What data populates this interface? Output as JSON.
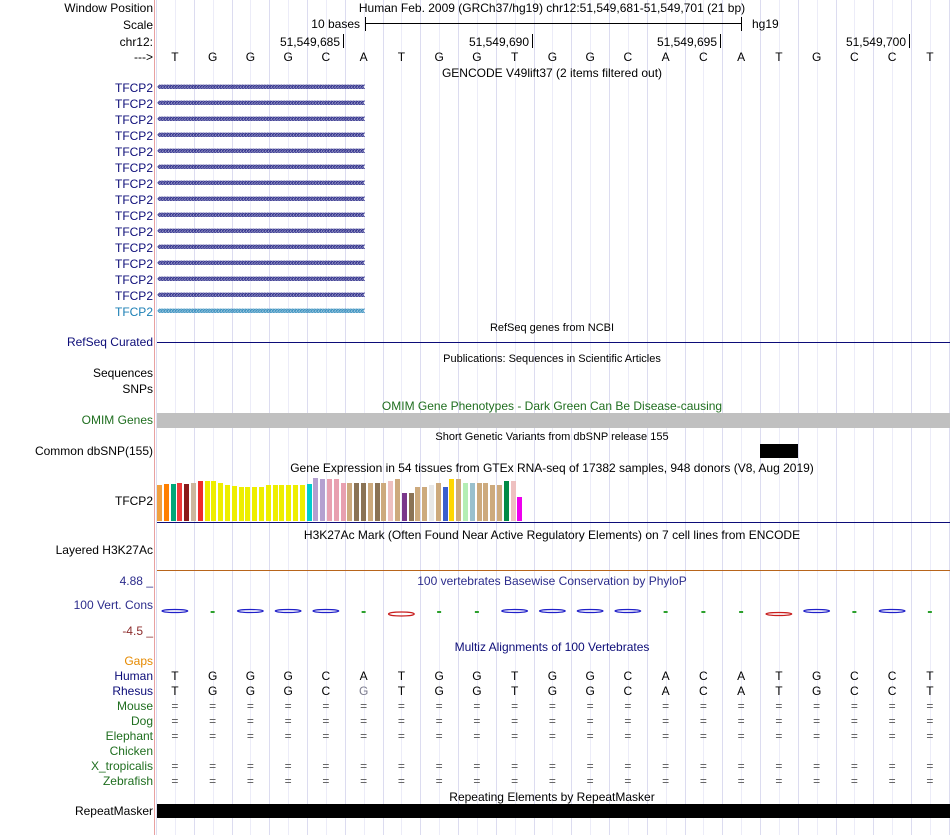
{
  "header": {
    "window_position_label": "Window Position",
    "assembly_text": "Human Feb. 2009 (GRCh37/hg19)   chr12:51,549,681-51,549,701 (21 bp)",
    "scale_label": "Scale",
    "scale_text": "10 bases",
    "scale_db": "hg19",
    "chrom_label": "chr12:",
    "coords": [
      "51,549,685",
      "51,549,690",
      "51,549,695",
      "51,549,700"
    ],
    "strand_label": "--->",
    "sequence": [
      "T",
      "G",
      "G",
      "G",
      "C",
      "A",
      "T",
      "G",
      "G",
      "T",
      "G",
      "G",
      "C",
      "A",
      "C",
      "A",
      "T",
      "G",
      "C",
      "C",
      "T"
    ]
  },
  "gencode": {
    "title": "GENCODE V49lift37 (2 items filtered out)",
    "gene_labels": [
      "TFCP2",
      "TFCP2",
      "TFCP2",
      "TFCP2",
      "TFCP2",
      "TFCP2",
      "TFCP2",
      "TFCP2",
      "TFCP2",
      "TFCP2",
      "TFCP2",
      "TFCP2",
      "TFCP2",
      "TFCP2",
      "TFCP2"
    ],
    "colors": {
      "coding": "#0c0c78",
      "noncoding": "#1b7fb5"
    }
  },
  "refseq": {
    "title": "RefSeq genes from NCBI",
    "label": "RefSeq Curated"
  },
  "publications": {
    "title": "Publications: Sequences in Scientific Articles",
    "label1": "Sequences",
    "label2": "SNPs"
  },
  "omim": {
    "title": "OMIM Gene Phenotypes - Dark Green Can Be Disease-causing",
    "label": "OMIM Genes",
    "color": "#1f6e1f"
  },
  "dbsnp": {
    "title": "Short Genetic Variants from dbSNP release 155",
    "label": "Common dbSNP(155)"
  },
  "gtex": {
    "title": "Gene Expression in 54 tissues from GTEx RNA-seq of 17382 samples, 948 donors (V8, Aug 2019)",
    "label": "TFCP2",
    "bar_colors": [
      "#f0a040",
      "#ff7f00",
      "#00a87a",
      "#ee3b3b",
      "#8b1a1a",
      "#cdb79e",
      "#ee2c2c",
      "#eeee00",
      "#eeee00",
      "#eeee00",
      "#eeee00",
      "#eeee00",
      "#eeee00",
      "#eeee00",
      "#eeee00",
      "#eeee00",
      "#eeee00",
      "#eeee00",
      "#eeee00",
      "#eeee00",
      "#eeee00",
      "#eeee00",
      "#00cdcd",
      "#b4a0d0",
      "#b4a0d0",
      "#e8a0b0",
      "#e8a0b0",
      "#e8a0b0",
      "#cdaa7d",
      "#8b7355",
      "#8b7355",
      "#cdaa7d",
      "#8b7355",
      "#cdaa7d",
      "#eec0c0",
      "#cdaa7d",
      "#7a378b",
      "#8b7355",
      "#cdaa7d",
      "#cdaa7d",
      "#e8e8e8",
      "#cdaa7d",
      "#3a5fcd",
      "#ffd700",
      "#cdaa7d",
      "#b4eeb4",
      "#9ac0cd",
      "#cdaa7d",
      "#cdaa7d",
      "#cdaa7d",
      "#cdaa7d",
      "#008b45",
      "#eec0c0",
      "#ee00ee"
    ],
    "bar_levels": [
      0.72,
      0.74,
      0.74,
      0.76,
      0.74,
      0.76,
      0.8,
      0.8,
      0.8,
      0.76,
      0.72,
      0.7,
      0.68,
      0.68,
      0.68,
      0.68,
      0.72,
      0.72,
      0.72,
      0.72,
      0.72,
      0.72,
      0.74,
      0.86,
      0.84,
      0.84,
      0.84,
      0.76,
      0.76,
      0.76,
      0.76,
      0.76,
      0.76,
      0.76,
      0.8,
      0.84,
      0.56,
      0.56,
      0.68,
      0.68,
      0.72,
      0.76,
      0.68,
      0.84,
      0.84,
      0.76,
      0.76,
      0.76,
      0.76,
      0.72,
      0.72,
      0.8,
      0.8,
      0.48
    ]
  },
  "h3k27ac": {
    "title": "H3K27Ac Mark (Often Found Near Active Regulatory Elements) on 7 cell lines from ENCODE",
    "label": "Layered H3K27Ac"
  },
  "phylop": {
    "title": "100 vertebrates Basewise Conservation by PhyloP",
    "label": "100 Vert. Cons",
    "max_label": "4.88 _",
    "min_label": "-4.5 _",
    "values": [
      0.12,
      0.0,
      0.1,
      0.1,
      0.12,
      0.0,
      -0.2,
      0.0,
      0.0,
      0.08,
      0.08,
      0.12,
      0.12,
      0.0,
      0.0,
      0.0,
      -0.15,
      0.1,
      0.0,
      0.1,
      0.0
    ],
    "colors": {
      "pos": "#2020c8",
      "neg": "#c81e1e"
    }
  },
  "multiz": {
    "title": "Multiz Alignments of 100 Vertebrates",
    "gaps_label": "Gaps",
    "species": [
      {
        "name": "Human",
        "row": [
          "T",
          "G",
          "G",
          "G",
          "C",
          "A",
          "T",
          "G",
          "G",
          "T",
          "G",
          "G",
          "C",
          "A",
          "C",
          "A",
          "T",
          "G",
          "C",
          "C",
          "T"
        ]
      },
      {
        "name": "Rhesus",
        "row": [
          "T",
          "G",
          "G",
          "G",
          "C",
          "G",
          "T",
          "G",
          "G",
          "T",
          "G",
          "G",
          "C",
          "A",
          "C",
          "A",
          "T",
          "G",
          "C",
          "C",
          "T"
        ]
      },
      {
        "name": "Mouse",
        "row": [
          "=",
          "=",
          "=",
          "=",
          "=",
          "=",
          "=",
          "=",
          "=",
          "=",
          "=",
          "=",
          "=",
          "=",
          "=",
          "=",
          "=",
          "=",
          "=",
          "=",
          "="
        ]
      },
      {
        "name": "Dog",
        "row": [
          "=",
          "=",
          "=",
          "=",
          "=",
          "=",
          "=",
          "=",
          "=",
          "=",
          "=",
          "=",
          "=",
          "=",
          "=",
          "=",
          "=",
          "=",
          "=",
          "=",
          "="
        ]
      },
      {
        "name": "Elephant",
        "row": [
          "=",
          "=",
          "=",
          "=",
          "=",
          "=",
          "=",
          "=",
          "=",
          "=",
          "=",
          "=",
          "=",
          "=",
          "=",
          "=",
          "=",
          "=",
          "=",
          "=",
          "="
        ]
      },
      {
        "name": "Chicken",
        "row": [
          "",
          "",
          "",
          "",
          "",
          "",
          "",
          "",
          "",
          "",
          "",
          "",
          "",
          "",
          "",
          "",
          "",
          "",
          "",
          "",
          ""
        ]
      },
      {
        "name": "X_tropicalis",
        "row": [
          "=",
          "=",
          "=",
          "=",
          "=",
          "=",
          "=",
          "=",
          "=",
          "=",
          "=",
          "=",
          "=",
          "=",
          "=",
          "=",
          "=",
          "=",
          "=",
          "=",
          "="
        ]
      },
      {
        "name": "Zebrafish",
        "row": [
          "=",
          "=",
          "=",
          "=",
          "=",
          "=",
          "=",
          "=",
          "=",
          "=",
          "=",
          "=",
          "=",
          "=",
          "=",
          "=",
          "=",
          "=",
          "=",
          "=",
          "="
        ]
      }
    ]
  },
  "repeatmasker": {
    "title": "Repeating Elements by RepeatMasker",
    "label": "RepeatMasker"
  }
}
